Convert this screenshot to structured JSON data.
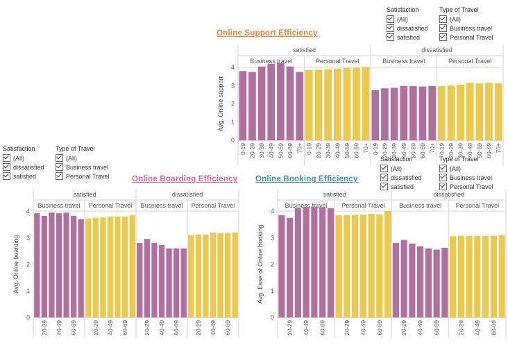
{
  "colors": {
    "business": "#b06f9e",
    "personal": "#ecc94b"
  },
  "filters": [
    {
      "label": "Satisfaction",
      "items": [
        "(All)",
        "dissatisfied",
        "satisfied"
      ]
    },
    {
      "label": "Type of Travel",
      "items": [
        "(All)",
        "Business travel",
        "Personal Travel"
      ]
    }
  ],
  "chart_data": [
    {
      "type": "bar",
      "title": "Online Support Efficiency",
      "title_color": "#e8843a",
      "ylabel": "Avg. Online support",
      "ylim": [
        0,
        4
      ],
      "yticks": [
        0,
        1,
        2,
        3,
        4
      ],
      "groups": [
        "satisfied",
        "dissatisfied"
      ],
      "series": [
        "Business travel",
        "Personal Travel"
      ],
      "categories": [
        "0-19",
        "20-29",
        "30-39",
        "40-49",
        "50-59",
        "60-69",
        "70+"
      ],
      "panes": [
        {
          "group": "satisfied",
          "series": "Business travel",
          "values": [
            3.8,
            3.75,
            4.05,
            4.2,
            4.25,
            4.05,
            3.75
          ]
        },
        {
          "group": "satisfied",
          "series": "Personal Travel",
          "values": [
            3.85,
            3.87,
            3.9,
            3.92,
            3.97,
            3.97,
            4.0
          ]
        },
        {
          "group": "dissatisfied",
          "series": "Business travel",
          "values": [
            2.75,
            2.85,
            2.88,
            2.98,
            2.97,
            2.95,
            2.98
          ]
        },
        {
          "group": "dissatisfied",
          "series": "Personal Travel",
          "values": [
            2.97,
            3.0,
            3.05,
            3.15,
            3.12,
            3.15,
            3.12
          ]
        }
      ]
    },
    {
      "type": "bar",
      "title": "Online Boarding Efficiency",
      "title_color": "#d9679a",
      "ylabel": "Avg. Online boarding",
      "ylim": [
        0,
        4
      ],
      "yticks": [
        0,
        1,
        2,
        3,
        4
      ],
      "groups": [
        "satisfied",
        "dissatisfied"
      ],
      "series": [
        "Business travel",
        "Personal Travel"
      ],
      "categories": [
        "0-19",
        "20-29",
        "30-39",
        "40-49",
        "50-59",
        "60-69",
        "70+"
      ],
      "shown_tick_labels": [
        "20-29",
        "40-49",
        "60-69"
      ],
      "panes": [
        {
          "group": "satisfied",
          "series": "Business travel",
          "values": [
            3.92,
            3.82,
            3.95,
            3.92,
            3.95,
            3.82,
            3.7
          ]
        },
        {
          "group": "satisfied",
          "series": "Personal Travel",
          "values": [
            3.72,
            3.75,
            3.77,
            3.8,
            3.8,
            3.8,
            3.85
          ]
        },
        {
          "group": "dissatisfied",
          "series": "Business travel",
          "values": [
            2.8,
            2.95,
            2.8,
            2.72,
            2.6,
            2.6,
            2.6
          ]
        },
        {
          "group": "dissatisfied",
          "series": "Personal Travel",
          "values": [
            3.1,
            3.12,
            3.12,
            3.2,
            3.18,
            3.18,
            3.2
          ]
        }
      ]
    },
    {
      "type": "bar",
      "title": "Online Booking Efficiency",
      "title_color": "#3f95b0",
      "ylabel": "Avg. Ease of Online booking",
      "ylim": [
        0,
        4
      ],
      "yticks": [
        0,
        1,
        2,
        3,
        4
      ],
      "groups": [
        "satisfied",
        "dissatisfied"
      ],
      "series": [
        "Business travel",
        "Personal Travel"
      ],
      "categories": [
        "0-19",
        "20-29",
        "30-39",
        "40-49",
        "50-59",
        "60-69",
        "70+"
      ],
      "shown_tick_labels": [
        "20-29",
        "40-49",
        "60-69"
      ],
      "panes": [
        {
          "group": "satisfied",
          "series": "Business travel",
          "values": [
            3.85,
            3.75,
            4.12,
            4.15,
            4.17,
            4.15,
            4.12
          ]
        },
        {
          "group": "satisfied",
          "series": "Personal Travel",
          "values": [
            3.85,
            3.85,
            3.87,
            3.87,
            3.9,
            3.88,
            4.0
          ]
        },
        {
          "group": "dissatisfied",
          "series": "Business travel",
          "values": [
            2.8,
            2.92,
            2.78,
            2.68,
            2.6,
            2.55,
            2.62
          ]
        },
        {
          "group": "dissatisfied",
          "series": "Personal Travel",
          "values": [
            3.05,
            3.07,
            3.07,
            3.07,
            3.07,
            3.07,
            3.1
          ]
        }
      ]
    }
  ]
}
